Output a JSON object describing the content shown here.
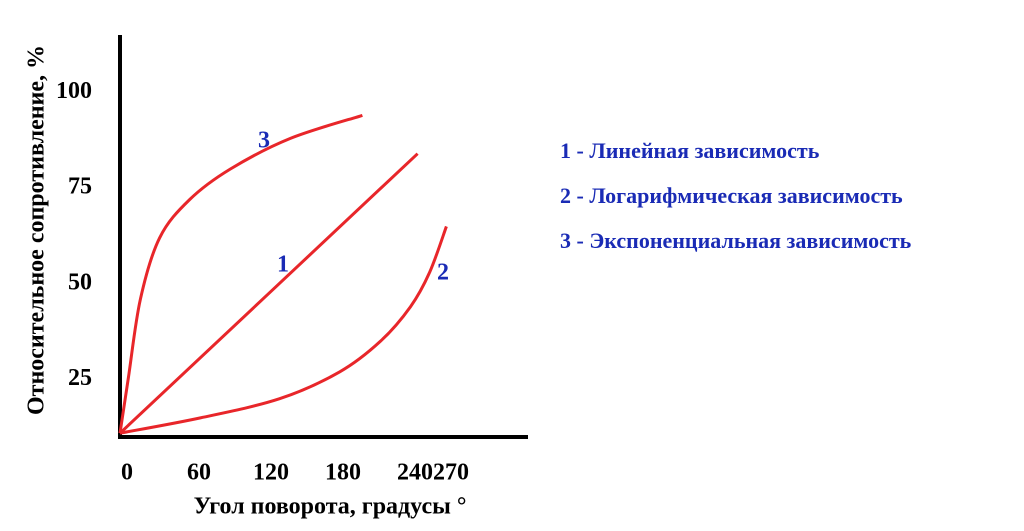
{
  "chart_data": {
    "type": "line",
    "xlabel": "Угол поворота, градусы °",
    "ylabel": "Относительное сопротивление, %",
    "xlim": [
      0,
      340
    ],
    "ylim": [
      10,
      115
    ],
    "xticks": [
      0,
      60,
      120,
      180,
      240,
      270
    ],
    "yticks": [
      25,
      50,
      75,
      100
    ],
    "grid": false,
    "legend_position": "right",
    "series": [
      {
        "name": "1 - Линейная зависимость",
        "color": "#e8262a",
        "x": [
          0,
          248
        ],
        "values": [
          11,
          84
        ]
      },
      {
        "name": "2 - Логарифмическая зависимость",
        "color": "#e8262a",
        "x": [
          0,
          67,
          133,
          183,
          217,
          242,
          258,
          272
        ],
        "values": [
          11,
          15,
          20,
          27,
          35,
          44,
          53,
          65
        ]
      },
      {
        "name": "3 - Экспоненциальная зависимость",
        "color": "#e8262a",
        "x": [
          0,
          7,
          17,
          33,
          58,
          92,
          142,
          202
        ],
        "values": [
          11,
          25.5,
          46,
          62,
          72,
          80,
          88,
          94
        ]
      }
    ],
    "annotations": [
      "1",
      "2",
      "3"
    ]
  }
}
